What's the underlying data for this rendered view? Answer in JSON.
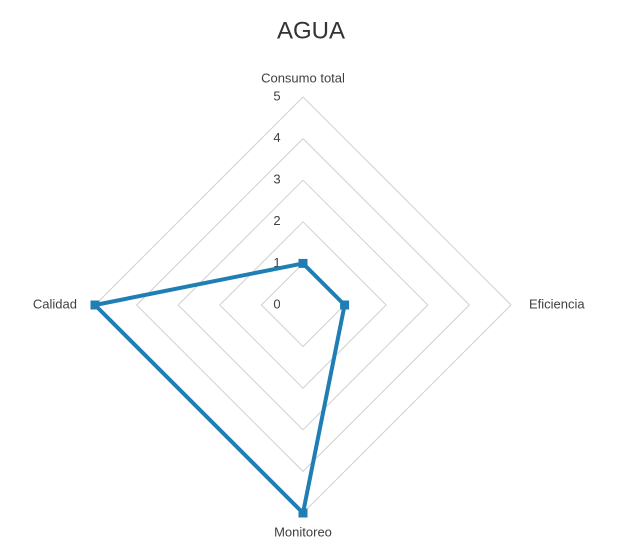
{
  "chart_data": {
    "type": "radar",
    "title": "AGUA",
    "categories": [
      "Consumo total",
      "Eficiencia",
      "Monitoreo",
      "Calidad"
    ],
    "values": [
      1,
      1,
      5,
      5
    ],
    "color": "#1f7fb5",
    "rlim": [
      0,
      5
    ],
    "rticks": [
      0,
      1,
      2,
      3,
      4,
      5
    ],
    "grid": true
  }
}
